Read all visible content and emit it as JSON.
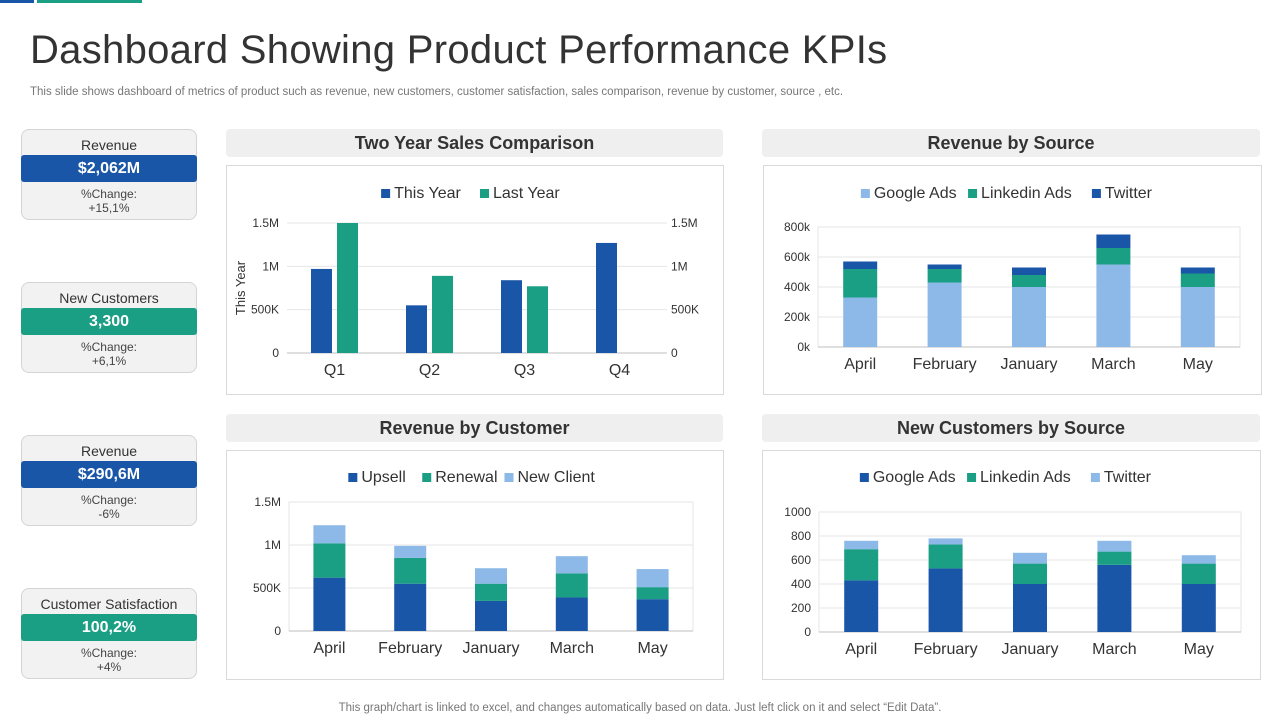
{
  "page": {
    "title": "Dashboard Showing Product Performance KPIs",
    "subtitle": "This slide shows dashboard of metrics of product such as revenue, new customers, customer satisfaction, sales comparison, revenue by customer, source , etc.",
    "footnote": "This graph/chart is linked to excel,  and changes automatically based on data. Just left click on it and select “Edit Data”."
  },
  "colors": {
    "blue": "#1a56a7",
    "teal": "#1a9e84",
    "light_blue": "#8db9e8",
    "grid": "#e6e6e6",
    "axis": "#bfbfbf"
  },
  "kpis": [
    {
      "label": "Revenue",
      "value": "$2,062M",
      "change_label": "%Change:",
      "change": "+15,1%",
      "color": "#1a56a7"
    },
    {
      "label": "New Customers",
      "value": "3,300",
      "change_label": "%Change:",
      "change": "+6,1%",
      "color": "#1a9e84"
    },
    {
      "label": "Revenue",
      "value": "$290,6M",
      "change_label": "%Change:",
      "change": "-6%",
      "color": "#1a56a7"
    },
    {
      "label": "Customer Satisfaction",
      "value": "100,2%",
      "change_label": "%Change:",
      "change": "+4%",
      "color": "#1a9e84"
    }
  ],
  "chart_data": [
    {
      "id": "two-year-sales",
      "title": "Two Year Sales Comparison",
      "type": "bar",
      "categories": [
        "Q1",
        "Q2",
        "Q3",
        "Q4"
      ],
      "series": [
        {
          "name": "This Year",
          "color": "#1a56a7",
          "values": [
            970000,
            550000,
            840000,
            1270000
          ]
        },
        {
          "name": "Last Year",
          "color": "#1a9e84",
          "values": [
            1500000,
            890000,
            770000,
            null
          ]
        }
      ],
      "ylim": [
        0,
        1500000
      ],
      "yticks": [
        0,
        500000,
        1000000,
        1500000
      ],
      "ytick_labels": [
        "0",
        "500K",
        "1M",
        "1.5M"
      ],
      "secondary_ytick_labels": [
        "0",
        "500K",
        "1M",
        "1.5M"
      ],
      "ylabel": "This Year",
      "xlabel": "",
      "grid": true,
      "legend": "top"
    },
    {
      "id": "revenue-by-source",
      "title": "Revenue by Source",
      "type": "bar",
      "stacked": true,
      "categories": [
        "April",
        "February",
        "January",
        "March",
        "May"
      ],
      "series": [
        {
          "name": "Google Ads",
          "color": "#8db9e8",
          "values": [
            330000,
            430000,
            400000,
            550000,
            400000
          ]
        },
        {
          "name": "Linkedin Ads",
          "color": "#1a9e84",
          "values": [
            190000,
            90000,
            80000,
            110000,
            90000
          ]
        },
        {
          "name": "Twitter",
          "color": "#1a56a7",
          "values": [
            50000,
            30000,
            50000,
            90000,
            40000
          ]
        }
      ],
      "ylim": [
        0,
        800000
      ],
      "yticks": [
        0,
        200000,
        400000,
        600000,
        800000
      ],
      "ytick_labels": [
        "0k",
        "200k",
        "400k",
        "600k",
        "800k"
      ],
      "xlabel": "",
      "ylabel": "",
      "grid": true,
      "legend": "top"
    },
    {
      "id": "revenue-by-customer",
      "title": "Revenue by Customer",
      "type": "bar",
      "stacked": true,
      "categories": [
        "April",
        "February",
        "January",
        "March",
        "May"
      ],
      "series": [
        {
          "name": "Upsell",
          "color": "#1a56a7",
          "values": [
            620000,
            550000,
            350000,
            390000,
            370000
          ]
        },
        {
          "name": "Renewal",
          "color": "#1a9e84",
          "values": [
            400000,
            300000,
            200000,
            280000,
            140000
          ]
        },
        {
          "name": "New Client",
          "color": "#8db9e8",
          "values": [
            210000,
            140000,
            180000,
            200000,
            210000
          ]
        }
      ],
      "ylim": [
        0,
        1500000
      ],
      "yticks": [
        0,
        500000,
        1000000,
        1500000
      ],
      "ytick_labels": [
        "0",
        "500K",
        "1M",
        "1.5M"
      ],
      "xlabel": "",
      "ylabel": "",
      "grid": true,
      "legend": "top"
    },
    {
      "id": "new-customers-by-source",
      "title": "New Customers by Source",
      "type": "bar",
      "stacked": true,
      "categories": [
        "April",
        "February",
        "January",
        "March",
        "May"
      ],
      "series": [
        {
          "name": "Google Ads",
          "color": "#1a56a7",
          "values": [
            430,
            530,
            400,
            560,
            400
          ]
        },
        {
          "name": "Linkedin Ads",
          "color": "#1a9e84",
          "values": [
            260,
            200,
            170,
            110,
            170
          ]
        },
        {
          "name": "Twitter",
          "color": "#8db9e8",
          "values": [
            70,
            50,
            90,
            90,
            70
          ]
        }
      ],
      "ylim": [
        0,
        1000
      ],
      "yticks": [
        0,
        200,
        400,
        600,
        800,
        1000
      ],
      "ytick_labels": [
        "0",
        "200",
        "400",
        "600",
        "800",
        "1000"
      ],
      "xlabel": "",
      "ylabel": "",
      "grid": true,
      "legend": "top"
    }
  ]
}
